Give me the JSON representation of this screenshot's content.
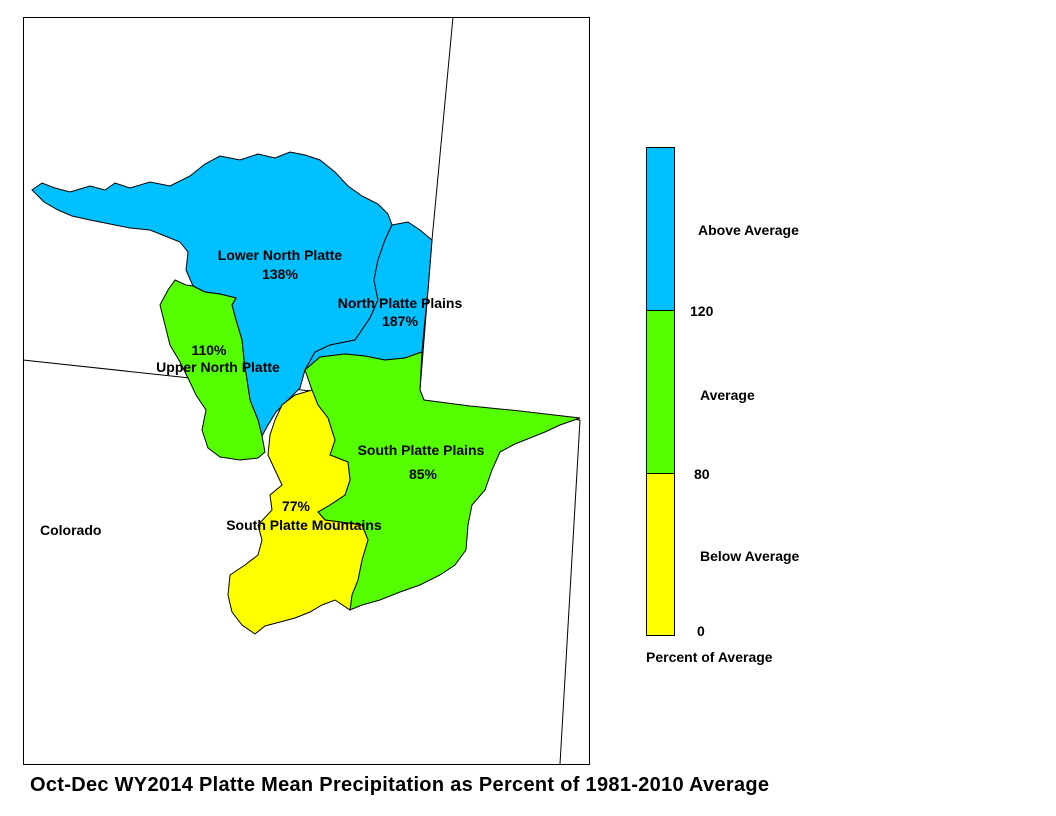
{
  "title": "Oct-Dec WY2014 Platte Mean Precipitation as Percent of 1981-2010 Average",
  "state_label": "Colorado",
  "colors": {
    "above": "#00c0ff",
    "average": "#55ff00",
    "below": "#ffff00",
    "outline": "#000000"
  },
  "basins": [
    {
      "id": "lower-north-platte",
      "name": "Lower North Platte",
      "percent": "138%",
      "category": "above"
    },
    {
      "id": "north-platte-plains",
      "name": "North Platte Plains",
      "percent": "187%",
      "category": "above"
    },
    {
      "id": "upper-north-platte",
      "name": "Upper North Platte",
      "percent": "110%",
      "category": "average"
    },
    {
      "id": "south-platte-plains",
      "name": "South Platte Plains",
      "percent": "85%",
      "category": "average"
    },
    {
      "id": "south-platte-mountains",
      "name": "South Platte Mountains",
      "percent": "77%",
      "category": "below"
    }
  ],
  "legend": {
    "caption": "Percent of Average",
    "classes": [
      {
        "label": "Above Average",
        "category": "above"
      },
      {
        "label": "Average",
        "category": "average"
      },
      {
        "label": "Below Average",
        "category": "below"
      }
    ],
    "breaks": [
      "120",
      "80",
      "0"
    ]
  }
}
